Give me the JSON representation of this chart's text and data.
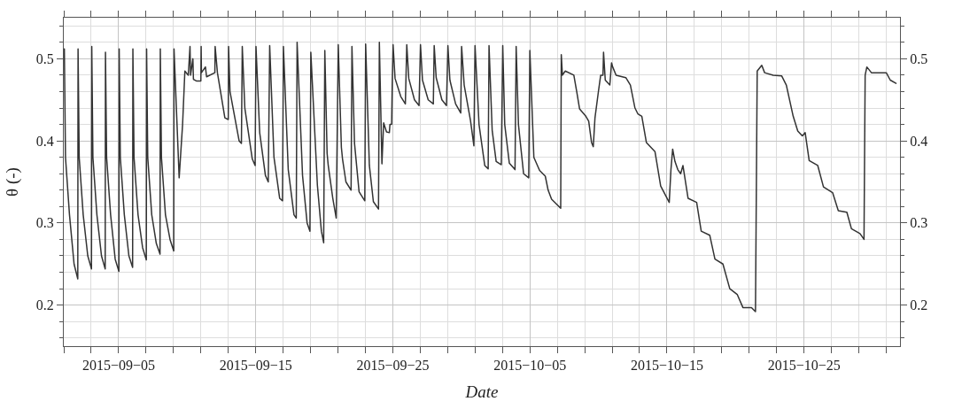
{
  "chart_data": {
    "type": "line",
    "xlabel": "Date",
    "ylabel": "θ (-)",
    "xlim": [
      "2015-09-01",
      "2015-11-01"
    ],
    "xticks": [
      {
        "value": "2015-09-01",
        "label": null
      },
      {
        "value": "2015-09-03",
        "label": null
      },
      {
        "value": "2015-09-05",
        "label": "2015−09−05"
      },
      {
        "value": "2015-09-07",
        "label": null
      },
      {
        "value": "2015-09-09",
        "label": null
      },
      {
        "value": "2015-09-11",
        "label": null
      },
      {
        "value": "2015-09-13",
        "label": null
      },
      {
        "value": "2015-09-15",
        "label": "2015−09−15"
      },
      {
        "value": "2015-09-17",
        "label": null
      },
      {
        "value": "2015-09-19",
        "label": null
      },
      {
        "value": "2015-09-21",
        "label": null
      },
      {
        "value": "2015-09-23",
        "label": null
      },
      {
        "value": "2015-09-25",
        "label": "2015−09−25"
      },
      {
        "value": "2015-09-27",
        "label": null
      },
      {
        "value": "2015-09-29",
        "label": null
      },
      {
        "value": "2015-10-01",
        "label": null
      },
      {
        "value": "2015-10-03",
        "label": null
      },
      {
        "value": "2015-10-05",
        "label": "2015−10−05"
      },
      {
        "value": "2015-10-07",
        "label": null
      },
      {
        "value": "2015-10-09",
        "label": null
      },
      {
        "value": "2015-10-11",
        "label": null
      },
      {
        "value": "2015-10-13",
        "label": null
      },
      {
        "value": "2015-10-15",
        "label": "2015−10−15"
      },
      {
        "value": "2015-10-17",
        "label": null
      },
      {
        "value": "2015-10-19",
        "label": null
      },
      {
        "value": "2015-10-21",
        "label": null
      },
      {
        "value": "2015-10-23",
        "label": null
      },
      {
        "value": "2015-10-25",
        "label": "2015−10−25"
      },
      {
        "value": "2015-10-27",
        "label": null
      },
      {
        "value": "2015-10-29",
        "label": null
      },
      {
        "value": "2015-10-31",
        "label": null
      }
    ],
    "ylim": [
      0.15,
      0.55
    ],
    "yticks": [
      {
        "value": 0.16,
        "label": null
      },
      {
        "value": 0.18,
        "label": null
      },
      0.2,
      {
        "value": 0.22,
        "label": null
      },
      {
        "value": 0.24,
        "label": null
      },
      {
        "value": 0.26,
        "label": null
      },
      {
        "value": 0.28,
        "label": null
      },
      0.3,
      {
        "value": 0.32,
        "label": null
      },
      {
        "value": 0.34,
        "label": null
      },
      {
        "value": 0.36,
        "label": null
      },
      {
        "value": 0.38,
        "label": null
      },
      0.4,
      {
        "value": 0.42,
        "label": null
      },
      {
        "value": 0.44,
        "label": null
      },
      {
        "value": 0.46,
        "label": null
      },
      {
        "value": 0.48,
        "label": null
      },
      0.5,
      {
        "value": 0.52,
        "label": null
      },
      {
        "value": 0.54,
        "label": null
      }
    ],
    "y2lim": [
      0.15,
      0.55
    ],
    "y2ticks": [
      {
        "value": 0.16,
        "label": null
      },
      {
        "value": 0.18,
        "label": null
      },
      0.2,
      {
        "value": 0.22,
        "label": null
      },
      {
        "value": 0.24,
        "label": null
      },
      {
        "value": 0.26,
        "label": null
      },
      {
        "value": 0.28,
        "label": null
      },
      0.3,
      {
        "value": 0.32,
        "label": null
      },
      {
        "value": 0.34,
        "label": null
      },
      {
        "value": 0.36,
        "label": null
      },
      {
        "value": 0.38,
        "label": null
      },
      0.4,
      {
        "value": 0.42,
        "label": null
      },
      {
        "value": 0.44,
        "label": null
      },
      {
        "value": 0.46,
        "label": null
      },
      {
        "value": 0.48,
        "label": null
      },
      0.5,
      {
        "value": 0.52,
        "label": null
      },
      {
        "value": 0.54,
        "label": null
      }
    ],
    "grid": true,
    "marker": "none",
    "line_style": "solid",
    "series": [
      {
        "color": "#333333",
        "x": [
          "2015-09-01T01:00",
          "2015-09-01T03:00",
          "2015-09-01T10:00",
          "2015-09-01T18:00",
          "2015-09-02T00:30",
          "2015-09-02T01:00",
          "2015-09-02T03:00",
          "2015-09-02T10:00",
          "2015-09-02T18:00",
          "2015-09-03T00:30",
          "2015-09-03T01:00",
          "2015-09-03T03:00",
          "2015-09-03T10:00",
          "2015-09-03T18:00",
          "2015-09-04T00:30",
          "2015-09-04T01:00",
          "2015-09-04T03:00",
          "2015-09-04T10:00",
          "2015-09-04T18:00",
          "2015-09-05T00:30",
          "2015-09-05T01:00",
          "2015-09-05T03:00",
          "2015-09-05T10:00",
          "2015-09-05T18:00",
          "2015-09-06T00:30",
          "2015-09-06T01:00",
          "2015-09-06T03:00",
          "2015-09-06T10:00",
          "2015-09-06T18:00",
          "2015-09-07T00:30",
          "2015-09-07T01:00",
          "2015-09-07T03:00",
          "2015-09-07T10:00",
          "2015-09-07T18:00",
          "2015-09-08T00:30",
          "2015-09-08T01:00",
          "2015-09-08T03:00",
          "2015-09-08T10:00",
          "2015-09-08T18:00",
          "2015-09-09T00:30",
          "2015-09-09T01:00",
          "2015-09-09T10:00",
          "2015-09-09T16:00",
          "2015-09-09T20:00",
          "2015-09-10T02:00",
          "2015-09-10T05:00",
          "2015-09-10T06:00",
          "2015-09-10T10:00",
          "2015-09-10T11:00",
          "2015-09-10T16:00",
          "2015-09-11T00:00",
          "2015-09-11T00:30",
          "2015-09-11T01:00",
          "2015-09-11T08:00",
          "2015-09-11T10:00",
          "2015-09-12T00:30",
          "2015-09-12T01:00",
          "2015-09-12T05:00",
          "2015-09-12T18:00",
          "2015-09-13T00:00",
          "2015-09-13T00:30",
          "2015-09-13T03:00",
          "2015-09-13T19:00",
          "2015-09-13T23:00",
          "2015-09-14T00:30",
          "2015-09-14T05:00",
          "2015-09-14T18:00",
          "2015-09-14T23:00",
          "2015-09-15T00:30",
          "2015-09-15T07:00",
          "2015-09-15T17:00",
          "2015-09-15T22:00",
          "2015-09-16T00:30",
          "2015-09-16T08:00",
          "2015-09-16T18:00",
          "2015-09-16T23:00",
          "2015-09-17T00:30",
          "2015-09-17T09:00",
          "2015-09-17T19:00",
          "2015-09-17T23:00",
          "2015-09-18T00:30",
          "2015-09-18T10:00",
          "2015-09-18T18:00",
          "2015-09-18T23:00",
          "2015-09-19T00:30",
          "2015-09-19T12:00",
          "2015-09-19T19:00",
          "2015-09-19T23:00",
          "2015-09-20T01:00",
          "2015-09-20T05:00",
          "2015-09-20T07:00",
          "2015-09-20T15:00",
          "2015-09-20T21:00",
          "2015-09-21T00:30",
          "2015-09-21T06:00",
          "2015-09-21T08:00",
          "2015-09-21T14:00",
          "2015-09-21T23:00",
          "2015-09-22T00:30",
          "2015-09-22T05:00",
          "2015-09-22T13:00",
          "2015-09-22T23:00",
          "2015-09-23T00:30",
          "2015-09-23T07:00",
          "2015-09-23T14:00",
          "2015-09-23T23:00",
          "2015-09-24T00:30",
          "2015-09-24T05:00",
          "2015-09-24T08:00",
          "2015-09-24T13:00",
          "2015-09-24T18:00",
          "2015-09-24T19:00",
          "2015-09-24T22:00",
          "2015-09-24T23:00",
          "2015-09-25T00:30",
          "2015-09-25T04:00",
          "2015-09-25T14:00",
          "2015-09-25T22:00",
          "2015-09-26T00:30",
          "2015-09-26T04:00",
          "2015-09-26T14:00",
          "2015-09-26T22:00",
          "2015-09-27T00:30",
          "2015-09-27T04:00",
          "2015-09-27T14:00",
          "2015-09-27T23:00",
          "2015-09-28T00:30",
          "2015-09-28T04:00",
          "2015-09-28T14:00",
          "2015-09-28T22:00",
          "2015-09-29T00:30",
          "2015-09-29T04:00",
          "2015-09-29T14:00",
          "2015-09-29T23:00",
          "2015-09-30T00:30",
          "2015-09-30T05:00",
          "2015-09-30T16:00",
          "2015-09-30T22:00",
          "2015-10-01T00:00",
          "2015-10-01T07:00",
          "2015-10-01T17:00",
          "2015-10-01T23:00",
          "2015-10-02T00:30",
          "2015-10-02T06:00",
          "2015-10-02T13:00",
          "2015-10-02T22:00",
          "2015-10-03T00:30",
          "2015-10-03T04:00",
          "2015-10-03T12:00",
          "2015-10-03T22:00",
          "2015-10-04T00:00",
          "2015-10-04T04:00",
          "2015-10-04T13:00",
          "2015-10-04T22:00",
          "2015-10-05T00:00",
          "2015-10-05T07:00",
          "2015-10-05T17:00",
          "2015-10-06T03:00",
          "2015-10-06T08:00",
          "2015-10-06T14:00",
          "2015-10-07T06:00",
          "2015-10-07T07:00",
          "2015-10-07T09:00",
          "2015-10-07T14:00",
          "2015-10-08T05:00",
          "2015-10-08T10:00",
          "2015-10-08T15:00",
          "2015-10-09T02:00",
          "2015-10-09T07:00",
          "2015-10-09T12:00",
          "2015-10-09T15:00",
          "2015-10-09T18:00",
          "2015-10-10T00:00",
          "2015-10-10T04:00",
          "2015-10-10T08:00",
          "2015-10-10T09:00",
          "2015-10-10T12:00",
          "2015-10-10T20:00",
          "2015-10-10T23:00",
          "2015-10-11T01:00",
          "2015-10-11T07:00",
          "2015-10-12T00:00",
          "2015-10-12T08:00",
          "2015-10-12T16:00",
          "2015-10-12T21:00",
          "2015-10-13T04:00",
          "2015-10-13T12:00",
          "2015-10-14T03:00",
          "2015-10-14T13:00",
          "2015-10-15T04:00",
          "2015-10-15T07:00",
          "2015-10-15T10:00",
          "2015-10-15T14:00",
          "2015-10-15T19:00",
          "2015-10-16T00:00",
          "2015-10-16T04:00",
          "2015-10-16T13:00",
          "2015-10-17T04:00",
          "2015-10-17T12:00",
          "2015-10-18T03:00",
          "2015-10-18T12:00",
          "2015-10-19T02:00",
          "2015-10-19T14:00",
          "2015-10-20T03:00",
          "2015-10-20T13:00",
          "2015-10-21T04:00",
          "2015-10-21T11:00",
          "2015-10-21T14:00",
          "2015-10-21T22:00",
          "2015-10-22T03:00",
          "2015-10-22T18:00",
          "2015-10-23T09:00",
          "2015-10-23T17:00",
          "2015-10-24T05:00",
          "2015-10-24T13:00",
          "2015-10-24T21:00",
          "2015-10-25T02:00",
          "2015-10-25T09:00",
          "2015-10-26T00:00",
          "2015-10-26T10:00",
          "2015-10-27T02:00",
          "2015-10-27T12:00",
          "2015-10-28T03:00",
          "2015-10-28T11:00",
          "2015-10-29T02:00",
          "2015-10-29T09:00",
          "2015-10-29T11:00",
          "2015-10-29T14:00",
          "2015-10-29T22:00",
          "2015-10-31T00:00",
          "2015-10-31T07:00",
          "2015-10-31T17:00"
        ],
        "values": [
          0.512,
          0.38,
          0.31,
          0.25,
          0.232,
          0.512,
          0.38,
          0.31,
          0.26,
          0.244,
          0.515,
          0.38,
          0.31,
          0.26,
          0.244,
          0.508,
          0.38,
          0.31,
          0.256,
          0.241,
          0.512,
          0.38,
          0.31,
          0.26,
          0.246,
          0.512,
          0.38,
          0.31,
          0.27,
          0.255,
          0.512,
          0.38,
          0.31,
          0.275,
          0.262,
          0.512,
          0.38,
          0.31,
          0.28,
          0.266,
          0.512,
          0.355,
          0.42,
          0.485,
          0.48,
          0.515,
          0.48,
          0.5,
          0.475,
          0.473,
          0.473,
          0.515,
          0.483,
          0.49,
          0.478,
          0.483,
          0.515,
          0.483,
          0.428,
          0.426,
          0.515,
          0.46,
          0.4,
          0.397,
          0.515,
          0.44,
          0.378,
          0.37,
          0.515,
          0.41,
          0.358,
          0.35,
          0.516,
          0.38,
          0.33,
          0.327,
          0.515,
          0.365,
          0.31,
          0.306,
          0.52,
          0.358,
          0.3,
          0.29,
          0.508,
          0.346,
          0.29,
          0.276,
          0.51,
          0.385,
          0.37,
          0.33,
          0.306,
          0.517,
          0.392,
          0.378,
          0.35,
          0.34,
          0.515,
          0.397,
          0.338,
          0.327,
          0.518,
          0.37,
          0.326,
          0.317,
          0.52,
          0.372,
          0.422,
          0.411,
          0.41,
          0.42,
          0.42,
          0.467,
          0.517,
          0.476,
          0.454,
          0.445,
          0.517,
          0.476,
          0.45,
          0.443,
          0.517,
          0.474,
          0.45,
          0.445,
          0.516,
          0.477,
          0.45,
          0.443,
          0.516,
          0.474,
          0.445,
          0.434,
          0.515,
          0.468,
          0.425,
          0.394,
          0.516,
          0.42,
          0.37,
          0.366,
          0.516,
          0.413,
          0.375,
          0.371,
          0.516,
          0.42,
          0.373,
          0.365,
          0.515,
          0.42,
          0.36,
          0.355,
          0.51,
          0.38,
          0.364,
          0.357,
          0.34,
          0.329,
          0.318,
          0.505,
          0.48,
          0.485,
          0.48,
          0.46,
          0.439,
          0.43,
          0.424,
          0.398,
          0.393,
          0.428,
          0.46,
          0.48,
          0.48,
          0.508,
          0.474,
          0.468,
          0.495,
          0.49,
          0.48,
          0.477,
          0.468,
          0.44,
          0.433,
          0.43,
          0.398,
          0.387,
          0.345,
          0.325,
          0.365,
          0.39,
          0.375,
          0.365,
          0.36,
          0.37,
          0.33,
          0.325,
          0.29,
          0.285,
          0.256,
          0.25,
          0.22,
          0.213,
          0.197,
          0.197,
          0.192,
          0.485,
          0.492,
          0.483,
          0.48,
          0.479,
          0.468,
          0.43,
          0.412,
          0.406,
          0.41,
          0.376,
          0.37,
          0.344,
          0.337,
          0.315,
          0.313,
          0.293,
          0.287,
          0.28,
          0.48,
          0.49,
          0.483,
          0.483,
          0.474,
          0.47
        ]
      }
    ]
  }
}
